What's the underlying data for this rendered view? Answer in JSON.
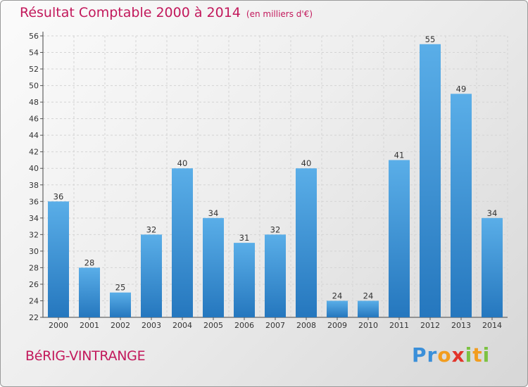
{
  "header": {
    "title": "Résultat Comptable 2000 à 2014",
    "subtitle": "(en milliers d'€)"
  },
  "footer": {
    "commune": "BéRIG-VINTRANGE",
    "brand": {
      "letters": [
        "P",
        "r",
        "o",
        "x",
        "i",
        "t",
        "i"
      ],
      "colors": [
        "#3a8fd9",
        "#3a8fd9",
        "#f29d1f",
        "#e2342a",
        "#7cc242",
        "#f29d1f",
        "#7cc242"
      ]
    }
  },
  "colors": {
    "bar_light": "#5aaee8",
    "bar_dark": "#2577be",
    "title": "#c2185b"
  },
  "chart_data": {
    "type": "bar",
    "categories": [
      "2000",
      "2001",
      "2002",
      "2003",
      "2004",
      "2005",
      "2006",
      "2007",
      "2008",
      "2009",
      "2010",
      "2011",
      "2012",
      "2013",
      "2014"
    ],
    "values": [
      36,
      28,
      25,
      32,
      40,
      34,
      31,
      32,
      40,
      24,
      24,
      41,
      55,
      49,
      34
    ],
    "ylim": [
      22,
      56
    ],
    "yticks": [
      22,
      24,
      26,
      28,
      30,
      32,
      34,
      36,
      38,
      40,
      42,
      44,
      46,
      48,
      50,
      52,
      54,
      56
    ],
    "grid": true,
    "xlabel": "",
    "ylabel": ""
  }
}
